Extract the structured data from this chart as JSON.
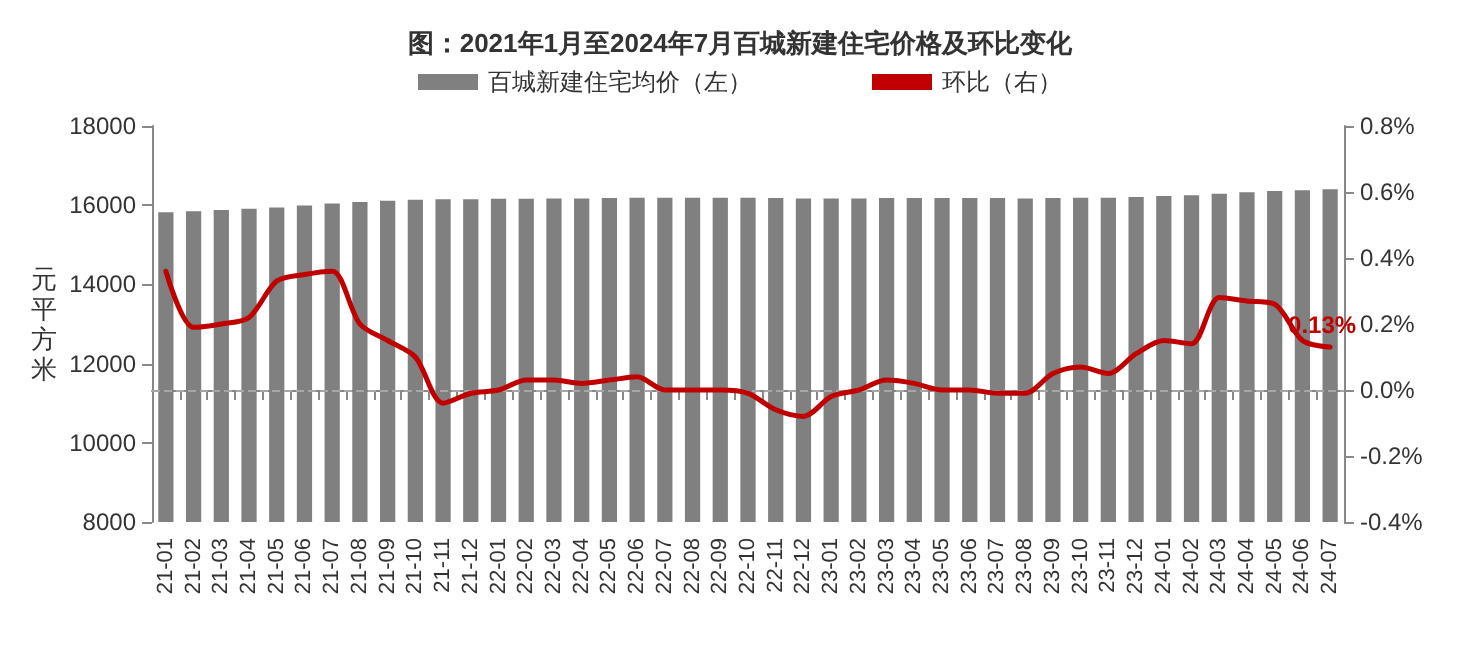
{
  "chart_data": {
    "type": "bar",
    "title": "图：2021年1月至2024年7月百城新建住宅价格及环比变化",
    "ylabel": "元平方米",
    "categories": [
      "21-01",
      "21-02",
      "21-03",
      "21-04",
      "21-05",
      "21-06",
      "21-07",
      "21-08",
      "21-09",
      "21-10",
      "21-11",
      "21-12",
      "22-01",
      "22-02",
      "22-03",
      "22-04",
      "22-05",
      "22-06",
      "22-07",
      "22-08",
      "22-09",
      "22-10",
      "22-11",
      "22-12",
      "23-01",
      "23-02",
      "23-03",
      "23-04",
      "23-05",
      "23-06",
      "23-07",
      "23-08",
      "23-09",
      "23-10",
      "23-11",
      "23-12",
      "24-01",
      "24-02",
      "24-03",
      "24-04",
      "24-05",
      "24-06",
      "24-07"
    ],
    "series": [
      {
        "name": "百城新建住宅均价（左）",
        "color": "#808080",
        "values": [
          15820,
          15850,
          15880,
          15910,
          15940,
          15990,
          16040,
          16080,
          16110,
          16140,
          16150,
          16150,
          16160,
          16160,
          16170,
          16170,
          16180,
          16190,
          16190,
          16190,
          16190,
          16190,
          16180,
          16170,
          16170,
          16170,
          16180,
          16180,
          16180,
          16180,
          16180,
          16170,
          16180,
          16190,
          16190,
          16210,
          16230,
          16250,
          16290,
          16330,
          16360,
          16380,
          16400
        ]
      },
      {
        "name": "环比（右）",
        "type": "line",
        "axis": "y2",
        "color": "#c00000",
        "values": [
          0.36,
          0.19,
          0.2,
          0.22,
          0.33,
          0.35,
          0.36,
          0.2,
          0.15,
          0.1,
          -0.04,
          -0.01,
          0.0,
          0.03,
          0.03,
          0.02,
          0.03,
          0.04,
          0.0,
          0.0,
          0.0,
          -0.01,
          -0.06,
          -0.08,
          -0.02,
          0.0,
          0.03,
          0.02,
          0.0,
          0.0,
          -0.01,
          -0.01,
          0.05,
          0.07,
          0.05,
          0.11,
          0.15,
          0.14,
          0.28,
          0.27,
          0.26,
          0.15,
          0.13
        ],
        "value_labels": [
          null,
          null,
          null,
          null,
          null,
          null,
          null,
          null,
          null,
          null,
          null,
          null,
          null,
          null,
          null,
          null,
          null,
          null,
          null,
          null,
          null,
          null,
          null,
          null,
          null,
          null,
          null,
          null,
          null,
          null,
          null,
          null,
          null,
          null,
          null,
          null,
          null,
          null,
          null,
          null,
          null,
          null,
          "0.13%"
        ]
      }
    ],
    "ylim": [
      8000,
      18000
    ],
    "yticks": [
      8000,
      10000,
      12000,
      14000,
      16000,
      18000
    ],
    "y2lim": [
      -0.4,
      0.8
    ],
    "y2ticks": [
      {
        "value": -0.4,
        "label": "-0.4%"
      },
      {
        "value": -0.2,
        "label": "-0.2%"
      },
      {
        "value": 0,
        "label": "0.0%"
      },
      {
        "value": 0.2,
        "label": "0.2%"
      },
      {
        "value": 0.4,
        "label": "0.4%"
      },
      {
        "value": 0.6,
        "label": "0.6%"
      },
      {
        "value": 0.8,
        "label": "0.8%"
      }
    ],
    "ref_lines": [
      {
        "axis": "y2",
        "value": 0,
        "color": "#a6a6a6",
        "line_style": "dashed"
      }
    ],
    "legend": "top",
    "grid": false,
    "marker": "none",
    "line_style": "solid"
  }
}
